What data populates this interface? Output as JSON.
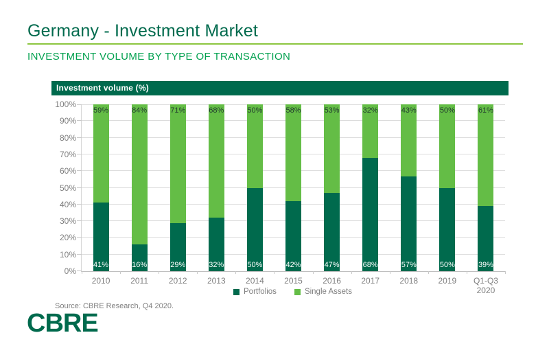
{
  "page": {
    "title": "Germany - Investment Market",
    "subtitle": "INVESTMENT VOLUME BY TYPE OF TRANSACTION",
    "source": "Source: CBRE Research, Q4 2020.",
    "logo_text": "CBRE"
  },
  "colors": {
    "brand_dark_green": "#006A4D",
    "light_green": "#64BD46",
    "subtitle_green": "#00A04E",
    "underline_green": "#8CC63F",
    "grid_gray": "#DCDCDC",
    "axis_text_gray": "#7F7F7F"
  },
  "chart_data": {
    "type": "bar",
    "stacked": true,
    "panel_title": "Investment volume (%)",
    "categories": [
      "2010",
      "2011",
      "2012",
      "2013",
      "2014",
      "2015",
      "2016",
      "2017",
      "2018",
      "2019",
      "Q1-Q3 2020"
    ],
    "series": [
      {
        "name": "Portfolios",
        "color": "#006A4D",
        "values": [
          41,
          16,
          29,
          32,
          50,
          42,
          47,
          68,
          57,
          50,
          39
        ],
        "label_position": "inside-bottom",
        "label_color": "#FFFFFF"
      },
      {
        "name": "Single Assets",
        "color": "#64BD46",
        "values": [
          59,
          84,
          71,
          68,
          50,
          58,
          53,
          32,
          43,
          50,
          61
        ],
        "label_position": "inside-top",
        "label_color": "#203A2E"
      }
    ],
    "y_ticks": [
      "0%",
      "10%",
      "20%",
      "30%",
      "40%",
      "50%",
      "60%",
      "70%",
      "80%",
      "90%",
      "100%"
    ],
    "ylim": [
      0,
      100
    ],
    "grid": true,
    "legend_position": "bottom"
  }
}
